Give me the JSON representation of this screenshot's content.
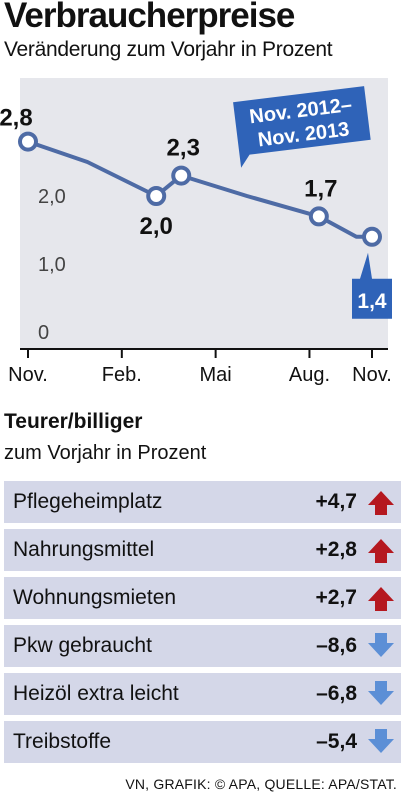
{
  "header": {
    "title": "Verbraucherpreise",
    "subtitle": "Veränderung zum Vorjahr in Prozent"
  },
  "badge": {
    "line1": "Nov. 2012–",
    "line2": "Nov. 2013"
  },
  "colors": {
    "line": "#4e6ba5",
    "plot_bg": "#e6e7ec",
    "badge": "#2f63b8",
    "row_bg": "#d4d7e8",
    "up_arrow": "#b5181f",
    "down_arrow": "#5c8fd6"
  },
  "chart_data": {
    "type": "line",
    "x_ticks": [
      "Nov.",
      "Feb.",
      "Mai",
      "Aug.",
      "Nov."
    ],
    "y_ticks": [
      "0",
      "1,0",
      "2,0"
    ],
    "ylim": [
      0,
      3
    ],
    "grid": false,
    "points": [
      {
        "x": 0.0,
        "y": 2.8,
        "label": "2,8"
      },
      {
        "x": 1.9,
        "y": 2.5
      },
      {
        "x": 4.1,
        "y": 2.0,
        "label": "2,0"
      },
      {
        "x": 4.9,
        "y": 2.3,
        "label": "2,3"
      },
      {
        "x": 7.0,
        "y": 2.0
      },
      {
        "x": 9.3,
        "y": 1.7,
        "label": "1,7"
      },
      {
        "x": 10.5,
        "y": 1.4
      },
      {
        "x": 11.0,
        "y": 1.4,
        "label": "1,4"
      }
    ]
  },
  "table": {
    "title": "Teurer/billiger",
    "subtitle": "zum Vorjahr in Prozent",
    "rows": [
      {
        "label": "Pflegeheimplatz",
        "value": "+4,7",
        "direction": "up"
      },
      {
        "label": "Nahrungsmittel",
        "value": "+2,8",
        "direction": "up"
      },
      {
        "label": "Wohnungsmieten",
        "value": "+2,7",
        "direction": "up"
      },
      {
        "label": "Pkw gebraucht",
        "value": "–8,6",
        "direction": "down"
      },
      {
        "label": "Heizöl extra leicht",
        "value": "–6,8",
        "direction": "down"
      },
      {
        "label": "Treibstoffe",
        "value": "–5,4",
        "direction": "down"
      }
    ]
  },
  "source": "VN, GRAFIK: © APA, QUELLE: APA/STAT."
}
